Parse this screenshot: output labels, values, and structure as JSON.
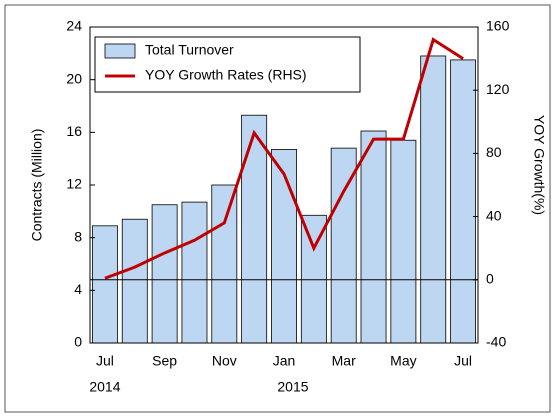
{
  "chart_data": {
    "type": "bar",
    "categories": [
      "Jul",
      null,
      "Sep",
      null,
      "Nov",
      null,
      "Jan",
      null,
      "Mar",
      null,
      "May",
      null,
      "Jul"
    ],
    "annotations": [
      "2014",
      "2015"
    ],
    "y_label": "Contracts (Million)",
    "y2_label": "YOY Growth(%)",
    "series": [
      {
        "name": "Total Turnover",
        "type": "bar",
        "color": "#bdd7f2",
        "values": [
          8.9,
          9.4,
          10.5,
          10.7,
          12.0,
          17.3,
          14.7,
          9.7,
          14.8,
          16.1,
          15.4,
          21.8,
          21.5
        ]
      },
      {
        "name": "YOY Growth Rates (RHS)",
        "type": "line",
        "axis": "y2",
        "color": "#c00000",
        "values": [
          1,
          8,
          17,
          25,
          36,
          93,
          67,
          20,
          56,
          89,
          89,
          152,
          140
        ]
      }
    ],
    "ylim": [
      0,
      24
    ],
    "yticks": [
      0,
      4,
      8,
      12,
      16,
      20,
      24
    ],
    "y2lim": [
      -40,
      160
    ],
    "y2ticks": [
      -40,
      0,
      40,
      80,
      120,
      160
    ],
    "legend": "top-left"
  }
}
